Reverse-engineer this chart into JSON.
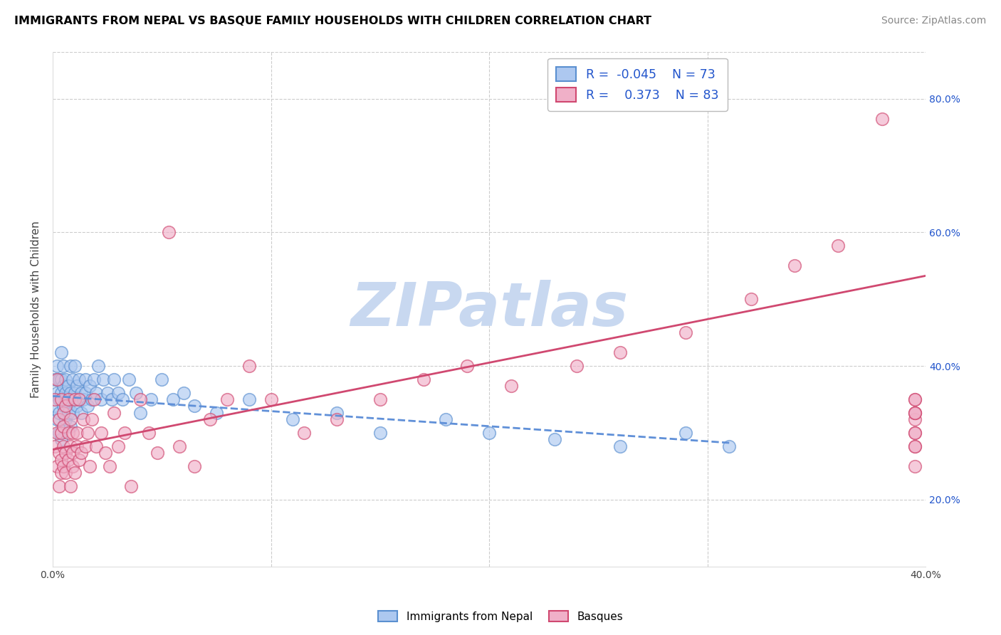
{
  "title": "IMMIGRANTS FROM NEPAL VS BASQUE FAMILY HOUSEHOLDS WITH CHILDREN CORRELATION CHART",
  "source": "Source: ZipAtlas.com",
  "ylabel": "Family Households with Children",
  "xlim": [
    0.0,
    0.4
  ],
  "ylim": [
    0.1,
    0.87
  ],
  "x_ticks": [
    0.0,
    0.1,
    0.2,
    0.3,
    0.4
  ],
  "x_tick_labels": [
    "0.0%",
    "",
    "",
    "",
    "40.0%"
  ],
  "y_ticks": [
    0.2,
    0.4,
    0.6,
    0.8
  ],
  "y_tick_labels_right": [
    "20.0%",
    "40.0%",
    "60.0%",
    "80.0%"
  ],
  "r_nepal": -0.045,
  "n_nepal": 73,
  "r_basque": 0.373,
  "n_basque": 83,
  "color_blue_fill": "#adc8f0",
  "color_blue_edge": "#5a8fd0",
  "color_pink_fill": "#f0b0c8",
  "color_pink_edge": "#d04870",
  "line_color_blue": "#6090d8",
  "line_color_pink": "#d04870",
  "watermark": "ZIPatlas",
  "watermark_color": "#c8d8f0",
  "grid_color": "#cccccc",
  "background": "#ffffff",
  "legend_text_color_label": "#222222",
  "legend_text_color_value": "#2255cc",
  "scatter_size": 160,
  "scatter_alpha": 0.65,
  "nepal_x": [
    0.001,
    0.001,
    0.002,
    0.002,
    0.002,
    0.003,
    0.003,
    0.003,
    0.003,
    0.004,
    0.004,
    0.004,
    0.004,
    0.005,
    0.005,
    0.005,
    0.005,
    0.006,
    0.006,
    0.006,
    0.006,
    0.007,
    0.007,
    0.007,
    0.008,
    0.008,
    0.008,
    0.009,
    0.009,
    0.009,
    0.01,
    0.01,
    0.011,
    0.011,
    0.012,
    0.012,
    0.013,
    0.013,
    0.014,
    0.015,
    0.015,
    0.016,
    0.017,
    0.018,
    0.019,
    0.02,
    0.021,
    0.022,
    0.023,
    0.025,
    0.027,
    0.028,
    0.03,
    0.032,
    0.035,
    0.038,
    0.04,
    0.045,
    0.05,
    0.055,
    0.06,
    0.065,
    0.075,
    0.09,
    0.11,
    0.13,
    0.15,
    0.18,
    0.2,
    0.23,
    0.26,
    0.29,
    0.31
  ],
  "nepal_y": [
    0.34,
    0.38,
    0.36,
    0.32,
    0.4,
    0.35,
    0.38,
    0.3,
    0.33,
    0.36,
    0.42,
    0.29,
    0.38,
    0.34,
    0.37,
    0.31,
    0.4,
    0.35,
    0.38,
    0.32,
    0.36,
    0.34,
    0.37,
    0.33,
    0.36,
    0.4,
    0.31,
    0.35,
    0.38,
    0.33,
    0.36,
    0.4,
    0.34,
    0.37,
    0.35,
    0.38,
    0.36,
    0.33,
    0.35,
    0.38,
    0.36,
    0.34,
    0.37,
    0.35,
    0.38,
    0.36,
    0.4,
    0.35,
    0.38,
    0.36,
    0.35,
    0.38,
    0.36,
    0.35,
    0.38,
    0.36,
    0.33,
    0.35,
    0.38,
    0.35,
    0.36,
    0.34,
    0.33,
    0.35,
    0.32,
    0.33,
    0.3,
    0.32,
    0.3,
    0.29,
    0.28,
    0.3,
    0.28
  ],
  "basque_x": [
    0.001,
    0.001,
    0.002,
    0.002,
    0.002,
    0.003,
    0.003,
    0.003,
    0.004,
    0.004,
    0.004,
    0.004,
    0.005,
    0.005,
    0.005,
    0.005,
    0.006,
    0.006,
    0.006,
    0.007,
    0.007,
    0.007,
    0.008,
    0.008,
    0.008,
    0.009,
    0.009,
    0.009,
    0.01,
    0.01,
    0.011,
    0.011,
    0.012,
    0.012,
    0.013,
    0.014,
    0.015,
    0.016,
    0.017,
    0.018,
    0.019,
    0.02,
    0.022,
    0.024,
    0.026,
    0.028,
    0.03,
    0.033,
    0.036,
    0.04,
    0.044,
    0.048,
    0.053,
    0.058,
    0.065,
    0.072,
    0.08,
    0.09,
    0.1,
    0.115,
    0.13,
    0.15,
    0.17,
    0.19,
    0.21,
    0.24,
    0.26,
    0.29,
    0.32,
    0.34,
    0.36,
    0.38,
    0.395,
    0.395,
    0.395,
    0.395,
    0.395,
    0.395,
    0.395,
    0.395,
    0.395,
    0.395,
    0.395
  ],
  "basque_y": [
    0.28,
    0.35,
    0.3,
    0.25,
    0.38,
    0.22,
    0.32,
    0.27,
    0.3,
    0.26,
    0.35,
    0.24,
    0.28,
    0.33,
    0.25,
    0.31,
    0.27,
    0.34,
    0.24,
    0.3,
    0.26,
    0.35,
    0.22,
    0.32,
    0.28,
    0.25,
    0.3,
    0.27,
    0.35,
    0.24,
    0.3,
    0.28,
    0.26,
    0.35,
    0.27,
    0.32,
    0.28,
    0.3,
    0.25,
    0.32,
    0.35,
    0.28,
    0.3,
    0.27,
    0.25,
    0.33,
    0.28,
    0.3,
    0.22,
    0.35,
    0.3,
    0.27,
    0.6,
    0.28,
    0.25,
    0.32,
    0.35,
    0.4,
    0.35,
    0.3,
    0.32,
    0.35,
    0.38,
    0.4,
    0.37,
    0.4,
    0.42,
    0.45,
    0.5,
    0.55,
    0.58,
    0.77,
    0.32,
    0.25,
    0.28,
    0.33,
    0.3,
    0.35,
    0.28,
    0.33,
    0.35,
    0.3,
    0.33
  ]
}
